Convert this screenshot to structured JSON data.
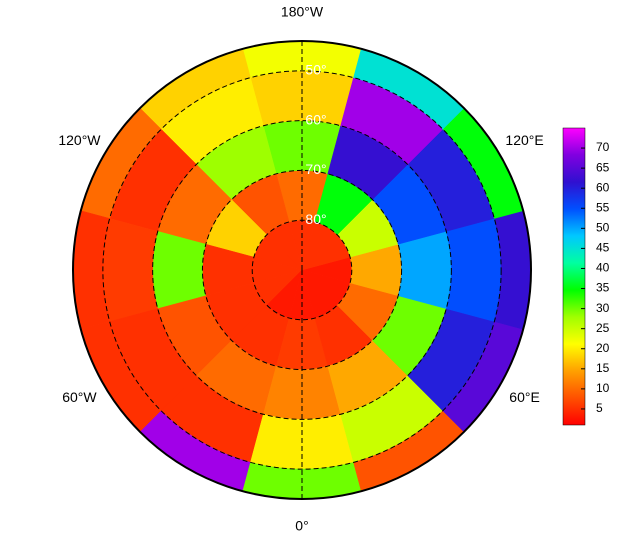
{
  "map": {
    "projection_center": 90,
    "lat_range": [
      44,
      90
    ],
    "lat_edges": [
      90,
      80,
      70,
      60,
      50,
      44
    ],
    "lon_edges": [
      -195,
      -165,
      -135,
      -105,
      -75,
      -45,
      -15,
      15,
      45,
      75,
      105,
      135,
      165
    ],
    "values": [
      [
        5,
        5,
        5,
        5,
        5,
        3,
        3,
        3,
        3,
        3,
        5,
        5
      ],
      [
        10,
        8,
        18,
        5,
        5,
        5,
        6,
        5,
        10,
        15,
        25,
        35
      ],
      [
        30,
        28,
        10,
        30,
        8,
        10,
        12,
        15,
        30,
        50,
        55,
        62
      ],
      [
        18,
        20,
        5,
        6,
        5,
        5,
        20,
        25,
        60,
        55,
        60,
        70
      ],
      [
        22,
        18,
        10,
        5,
        5,
        70,
        30,
        8,
        65,
        62,
        35,
        45
      ]
    ],
    "parallels": [
      {
        "value": 50,
        "label": "50°"
      },
      {
        "value": 60,
        "label": "60°"
      },
      {
        "value": 70,
        "label": "70°"
      },
      {
        "value": 80,
        "label": "80°"
      }
    ],
    "meridians": [
      0,
      180
    ],
    "lon_labels": [
      {
        "value": 180,
        "label": "180°W"
      },
      {
        "value": 120,
        "label": "120°E"
      },
      {
        "value": -120,
        "label": "120°W"
      },
      {
        "value": 60,
        "label": "60°E"
      },
      {
        "value": -60,
        "label": "60°W"
      },
      {
        "value": 0,
        "label": "0°"
      }
    ]
  },
  "colorbar": {
    "clim": [
      1,
      75
    ],
    "ticks": [
      5,
      10,
      15,
      20,
      25,
      30,
      35,
      40,
      45,
      50,
      55,
      60,
      65,
      70
    ],
    "colors": [
      "#ff0000",
      "#ff5000",
      "#ffa000",
      "#ffff00",
      "#a0ff00",
      "#00ff00",
      "#00ffa0",
      "#00c8ff",
      "#0050ff",
      "#3010d0",
      "#8000e0",
      "#ff00ff"
    ]
  }
}
